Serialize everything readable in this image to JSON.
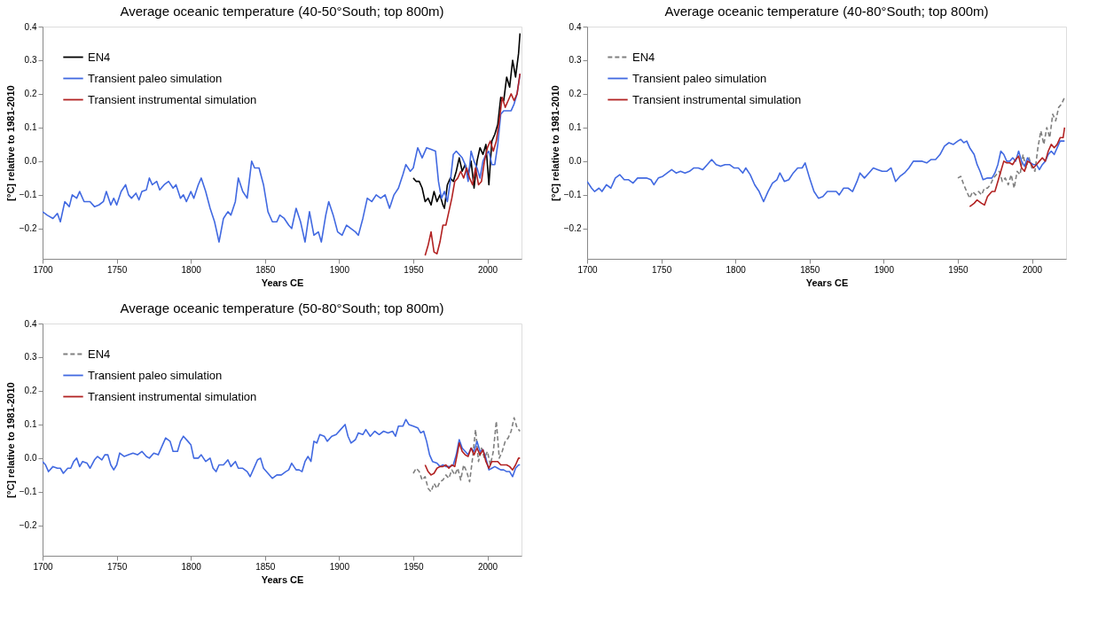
{
  "chart_data": [
    {
      "type": "line",
      "title": "Average oceanic temperature (40-50°South; top 800m)",
      "xlabel": "Years CE",
      "ylabel": "[°C] relative to 1981-2010",
      "xlim": [
        1700,
        2023
      ],
      "ylim": [
        -0.29,
        0.4
      ],
      "xticks": [
        1700,
        1750,
        1800,
        1850,
        1900,
        1950,
        2000
      ],
      "yticks": [
        {
          "value": -0.2,
          "label": "−0.2"
        },
        {
          "value": -0.1,
          "label": "−0.1"
        },
        {
          "value": 0,
          "label": "0.0"
        },
        0.1,
        0.2,
        0.3,
        0.4
      ],
      "legend": "top left",
      "series": [
        {
          "name": "EN4",
          "color": "#000000",
          "line_style": "solid",
          "x": [
            1950,
            1952,
            1954,
            1956,
            1958,
            1960,
            1962,
            1964,
            1966,
            1968,
            1970,
            1971,
            1973,
            1975,
            1977,
            1979,
            1981,
            1983,
            1985,
            1987,
            1989,
            1991,
            1993,
            1995,
            1997,
            1999,
            2001,
            2003,
            2005,
            2007,
            2009,
            2011,
            2013,
            2015,
            2017,
            2019,
            2021,
            2022
          ],
          "values": [
            -0.05,
            -0.06,
            -0.06,
            -0.08,
            -0.12,
            -0.11,
            -0.13,
            -0.09,
            -0.12,
            -0.1,
            -0.13,
            -0.14,
            -0.07,
            -0.05,
            -0.06,
            -0.03,
            0.01,
            -0.03,
            -0.01,
            -0.04,
            0.0,
            -0.08,
            0.0,
            0.04,
            0.02,
            0.05,
            -0.07,
            0.06,
            0.08,
            0.11,
            0.19,
            0.18,
            0.25,
            0.22,
            0.3,
            0.25,
            0.32,
            0.38
          ]
        },
        {
          "name": "Transient paleo simulation",
          "color": "#4169e1",
          "line_style": "solid",
          "x": [
            1700,
            1703,
            1707,
            1710,
            1712,
            1715,
            1718,
            1720,
            1723,
            1725,
            1728,
            1732,
            1735,
            1738,
            1741,
            1743,
            1746,
            1748,
            1750,
            1753,
            1756,
            1758,
            1760,
            1763,
            1765,
            1767,
            1770,
            1772,
            1774,
            1777,
            1779,
            1782,
            1785,
            1788,
            1790,
            1793,
            1795,
            1797,
            1800,
            1802,
            1805,
            1807,
            1810,
            1813,
            1816,
            1819,
            1822,
            1825,
            1827,
            1830,
            1832,
            1835,
            1838,
            1841,
            1843,
            1846,
            1849,
            1852,
            1855,
            1858,
            1860,
            1863,
            1866,
            1868,
            1871,
            1874,
            1877,
            1880,
            1883,
            1886,
            1888,
            1891,
            1893,
            1896,
            1899,
            1902,
            1905,
            1908,
            1911,
            1913,
            1916,
            1919,
            1922,
            1925,
            1928,
            1931,
            1934,
            1937,
            1940,
            1943,
            1945,
            1948,
            1950,
            1953,
            1956,
            1959,
            1962,
            1965,
            1967,
            1969,
            1971,
            1973,
            1975,
            1977,
            1979,
            1981,
            1983,
            1985,
            1987,
            1989,
            1991,
            1993,
            1995,
            1997,
            1999,
            2001,
            2003,
            2005,
            2007,
            2009,
            2011,
            2014,
            2016,
            2018,
            2020,
            2022
          ],
          "values": [
            -0.15,
            -0.16,
            -0.17,
            -0.155,
            -0.18,
            -0.12,
            -0.135,
            -0.1,
            -0.11,
            -0.09,
            -0.12,
            -0.12,
            -0.135,
            -0.13,
            -0.12,
            -0.09,
            -0.13,
            -0.11,
            -0.13,
            -0.09,
            -0.07,
            -0.1,
            -0.11,
            -0.095,
            -0.115,
            -0.09,
            -0.085,
            -0.05,
            -0.07,
            -0.06,
            -0.085,
            -0.07,
            -0.06,
            -0.08,
            -0.07,
            -0.11,
            -0.1,
            -0.12,
            -0.09,
            -0.11,
            -0.07,
            -0.05,
            -0.09,
            -0.14,
            -0.18,
            -0.24,
            -0.17,
            -0.15,
            -0.16,
            -0.12,
            -0.05,
            -0.09,
            -0.11,
            0.0,
            -0.02,
            -0.02,
            -0.07,
            -0.15,
            -0.18,
            -0.18,
            -0.16,
            -0.17,
            -0.19,
            -0.2,
            -0.14,
            -0.18,
            -0.24,
            -0.15,
            -0.22,
            -0.21,
            -0.24,
            -0.16,
            -0.12,
            -0.16,
            -0.21,
            -0.22,
            -0.19,
            -0.2,
            -0.21,
            -0.22,
            -0.17,
            -0.11,
            -0.12,
            -0.1,
            -0.11,
            -0.1,
            -0.14,
            -0.1,
            -0.08,
            -0.04,
            -0.01,
            -0.03,
            -0.02,
            0.04,
            0.01,
            0.04,
            0.035,
            0.03,
            -0.06,
            -0.11,
            -0.09,
            -0.12,
            -0.06,
            0.02,
            0.03,
            0.02,
            0.01,
            -0.01,
            -0.06,
            0.03,
            0.0,
            -0.02,
            -0.05,
            0.0,
            0.02,
            0.03,
            -0.01,
            -0.01,
            0.05,
            0.14,
            0.15,
            0.15,
            0.15,
            0.17,
            0.2,
            0.26
          ]
        },
        {
          "name": "Transient instrumental simulation",
          "color": "#b22222",
          "line_style": "solid",
          "x": [
            1958,
            1960,
            1962,
            1964,
            1966,
            1968,
            1970,
            1972,
            1974,
            1976,
            1978,
            1980,
            1982,
            1984,
            1986,
            1988,
            1990,
            1992,
            1994,
            1996,
            1998,
            2000,
            2002,
            2004,
            2006,
            2008,
            2010,
            2012,
            2014,
            2016,
            2018,
            2020,
            2022
          ],
          "values": [
            -0.28,
            -0.25,
            -0.21,
            -0.27,
            -0.275,
            -0.24,
            -0.19,
            -0.19,
            -0.15,
            -0.11,
            -0.06,
            -0.05,
            -0.03,
            -0.05,
            -0.02,
            -0.05,
            -0.07,
            -0.02,
            -0.07,
            -0.06,
            0.0,
            0.04,
            0.06,
            0.03,
            0.06,
            0.12,
            0.19,
            0.16,
            0.18,
            0.2,
            0.18,
            0.2,
            0.26
          ]
        }
      ]
    },
    {
      "type": "line",
      "title": "Average oceanic temperature (40-80°South; top 800m)",
      "xlabel": "Years CE",
      "ylabel": "[°C] relative to 1981-2010",
      "xlim": [
        1700,
        2023
      ],
      "ylim": [
        -0.29,
        0.4
      ],
      "xticks": [
        1700,
        1750,
        1800,
        1850,
        1900,
        1950,
        2000
      ],
      "yticks": [
        {
          "value": -0.2,
          "label": "−0.2"
        },
        {
          "value": -0.1,
          "label": "−0.1"
        },
        {
          "value": 0,
          "label": "0.0"
        },
        0.1,
        0.2,
        0.3,
        0.4
      ],
      "legend": "top left",
      "series": [
        {
          "name": "EN4",
          "color": "#808080",
          "line_style": "dashed",
          "x": [
            1950,
            1952,
            1954,
            1956,
            1958,
            1960,
            1962,
            1964,
            1966,
            1968,
            1970,
            1972,
            1974,
            1976,
            1978,
            1980,
            1982,
            1984,
            1986,
            1988,
            1990,
            1992,
            1994,
            1996,
            1998,
            2000,
            2002,
            2004,
            2006,
            2008,
            2010,
            2012,
            2014,
            2016,
            2018,
            2020,
            2022
          ],
          "values": [
            -0.05,
            -0.045,
            -0.07,
            -0.09,
            -0.11,
            -0.09,
            -0.1,
            -0.09,
            -0.1,
            -0.08,
            -0.08,
            -0.07,
            -0.05,
            -0.04,
            -0.03,
            -0.06,
            -0.05,
            -0.07,
            -0.04,
            -0.08,
            -0.03,
            -0.04,
            0.02,
            -0.02,
            0.01,
            -0.02,
            -0.03,
            0.04,
            0.09,
            0.05,
            0.1,
            0.07,
            0.14,
            0.12,
            0.16,
            0.17,
            0.19
          ]
        },
        {
          "name": "Transient paleo simulation",
          "color": "#4169e1",
          "line_style": "solid",
          "x": [
            1700,
            1703,
            1705,
            1708,
            1710,
            1713,
            1716,
            1719,
            1722,
            1725,
            1728,
            1731,
            1734,
            1737,
            1740,
            1743,
            1745,
            1748,
            1751,
            1754,
            1757,
            1760,
            1763,
            1766,
            1769,
            1772,
            1775,
            1778,
            1781,
            1784,
            1787,
            1790,
            1793,
            1796,
            1799,
            1802,
            1805,
            1807,
            1810,
            1813,
            1816,
            1819,
            1822,
            1825,
            1828,
            1830,
            1833,
            1836,
            1839,
            1842,
            1845,
            1847,
            1850,
            1853,
            1856,
            1859,
            1862,
            1865,
            1868,
            1870,
            1873,
            1876,
            1879,
            1882,
            1884,
            1887,
            1890,
            1893,
            1896,
            1899,
            1902,
            1905,
            1908,
            1911,
            1914,
            1917,
            1920,
            1923,
            1926,
            1929,
            1932,
            1935,
            1938,
            1941,
            1944,
            1947,
            1950,
            1952,
            1954,
            1956,
            1958,
            1961,
            1963,
            1965,
            1967,
            1970,
            1973,
            1975,
            1977,
            1979,
            1981,
            1983,
            1985,
            1987,
            1989,
            1991,
            1993,
            1995,
            1997,
            1999,
            2001,
            2003,
            2005,
            2007,
            2009,
            2011,
            2013,
            2015,
            2017,
            2019,
            2022
          ],
          "values": [
            -0.06,
            -0.08,
            -0.09,
            -0.08,
            -0.09,
            -0.07,
            -0.08,
            -0.05,
            -0.04,
            -0.055,
            -0.055,
            -0.065,
            -0.05,
            -0.05,
            -0.05,
            -0.055,
            -0.07,
            -0.05,
            -0.045,
            -0.035,
            -0.025,
            -0.035,
            -0.03,
            -0.035,
            -0.03,
            -0.02,
            -0.02,
            -0.025,
            -0.01,
            0.005,
            -0.01,
            -0.015,
            -0.01,
            -0.01,
            -0.02,
            -0.02,
            -0.035,
            -0.02,
            -0.04,
            -0.07,
            -0.09,
            -0.12,
            -0.09,
            -0.065,
            -0.055,
            -0.035,
            -0.06,
            -0.055,
            -0.035,
            -0.02,
            -0.02,
            -0.005,
            -0.05,
            -0.09,
            -0.11,
            -0.105,
            -0.09,
            -0.09,
            -0.09,
            -0.1,
            -0.08,
            -0.08,
            -0.09,
            -0.06,
            -0.035,
            -0.05,
            -0.035,
            -0.02,
            -0.025,
            -0.03,
            -0.03,
            -0.02,
            -0.06,
            -0.045,
            -0.035,
            -0.02,
            0.0,
            0.0,
            0.0,
            -0.005,
            0.005,
            0.005,
            0.02,
            0.045,
            0.055,
            0.05,
            0.06,
            0.065,
            0.055,
            0.06,
            0.04,
            0.02,
            -0.01,
            -0.03,
            -0.055,
            -0.05,
            -0.05,
            -0.035,
            -0.01,
            0.03,
            0.02,
            0.0,
            0.0,
            0.01,
            0.0,
            0.03,
            0.0,
            -0.015,
            0.01,
            -0.005,
            -0.01,
            -0.01,
            -0.025,
            -0.01,
            0.0,
            0.02,
            0.03,
            0.02,
            0.04,
            0.06,
            0.06
          ]
        },
        {
          "name": "Transient instrumental simulation",
          "color": "#b22222",
          "line_style": "solid",
          "x": [
            1958,
            1961,
            1963,
            1966,
            1968,
            1970,
            1973,
            1975,
            1977,
            1979,
            1981,
            1983,
            1985,
            1987,
            1989,
            1991,
            1993,
            1995,
            1997,
            1999,
            2001,
            2003,
            2005,
            2007,
            2009,
            2011,
            2013,
            2015,
            2017,
            2019,
            2021,
            2022
          ],
          "values": [
            -0.135,
            -0.125,
            -0.115,
            -0.125,
            -0.13,
            -0.105,
            -0.09,
            -0.09,
            -0.06,
            -0.03,
            0.0,
            -0.005,
            -0.005,
            -0.01,
            0.005,
            0.015,
            -0.02,
            -0.03,
            0.0,
            -0.005,
            -0.02,
            -0.01,
            0.0,
            0.01,
            0.0,
            0.03,
            0.05,
            0.04,
            0.05,
            0.07,
            0.07,
            0.1
          ]
        }
      ]
    },
    {
      "type": "line",
      "title": "Average oceanic temperature (50-80°South; top 800m)",
      "xlabel": "Years CE",
      "ylabel": "[°C] relative to 1981-2010",
      "xlim": [
        1700,
        2023
      ],
      "ylim": [
        -0.29,
        0.4
      ],
      "xticks": [
        1700,
        1750,
        1800,
        1850,
        1900,
        1950,
        2000
      ],
      "yticks": [
        {
          "value": -0.2,
          "label": "−0.2"
        },
        {
          "value": -0.1,
          "label": "−0.1"
        },
        {
          "value": 0,
          "label": "0.0"
        },
        0.1,
        0.2,
        0.3,
        0.4
      ],
      "legend": "top left",
      "series": [
        {
          "name": "EN4",
          "color": "#808080",
          "line_style": "dashed",
          "x": [
            1950,
            1952,
            1954,
            1956,
            1958,
            1960,
            1962,
            1964,
            1966,
            1968,
            1970,
            1972,
            1974,
            1976,
            1978,
            1980,
            1982,
            1984,
            1986,
            1988,
            1990,
            1992,
            1994,
            1996,
            1998,
            2000,
            2002,
            2004,
            2006,
            2008,
            2010,
            2012,
            2014,
            2016,
            2018,
            2020,
            2022
          ],
          "values": [
            -0.045,
            -0.03,
            -0.04,
            -0.065,
            -0.055,
            -0.09,
            -0.1,
            -0.075,
            -0.09,
            -0.07,
            -0.065,
            -0.05,
            -0.06,
            -0.035,
            -0.05,
            -0.03,
            -0.065,
            -0.02,
            -0.04,
            -0.07,
            0.0,
            0.085,
            -0.01,
            0.03,
            0.0,
            0.02,
            -0.02,
            0.02,
            0.11,
            0.0,
            0.02,
            0.05,
            0.06,
            0.08,
            0.12,
            0.09,
            0.08
          ]
        },
        {
          "name": "Transient paleo simulation",
          "color": "#4169e1",
          "line_style": "solid",
          "x": [
            1700,
            1702,
            1704,
            1707,
            1710,
            1712,
            1714,
            1717,
            1719,
            1721,
            1723,
            1725,
            1727,
            1730,
            1732,
            1735,
            1737,
            1740,
            1742,
            1744,
            1746,
            1748,
            1750,
            1752,
            1755,
            1758,
            1761,
            1764,
            1767,
            1770,
            1772,
            1775,
            1778,
            1781,
            1783,
            1786,
            1788,
            1791,
            1793,
            1795,
            1798,
            1800,
            1802,
            1805,
            1807,
            1810,
            1813,
            1815,
            1817,
            1819,
            1822,
            1825,
            1827,
            1830,
            1832,
            1835,
            1838,
            1840,
            1843,
            1845,
            1847,
            1849,
            1852,
            1855,
            1858,
            1861,
            1864,
            1866,
            1868,
            1871,
            1873,
            1875,
            1877,
            1879,
            1881,
            1883,
            1885,
            1887,
            1890,
            1892,
            1895,
            1898,
            1901,
            1904,
            1906,
            1908,
            1911,
            1913,
            1916,
            1918,
            1921,
            1924,
            1927,
            1930,
            1933,
            1936,
            1938,
            1940,
            1943,
            1945,
            1947,
            1950,
            1953,
            1955,
            1957,
            1959,
            1961,
            1963,
            1966,
            1968,
            1970,
            1972,
            1975,
            1977,
            1979,
            1981,
            1983,
            1985,
            1987,
            1989,
            1991,
            1993,
            1995,
            1997,
            1999,
            2001,
            2003,
            2005,
            2007,
            2009,
            2011,
            2013,
            2015,
            2017,
            2019,
            2021,
            2022
          ],
          "values": [
            -0.01,
            -0.02,
            -0.04,
            -0.025,
            -0.03,
            -0.03,
            -0.045,
            -0.03,
            -0.03,
            -0.01,
            0.0,
            -0.025,
            -0.01,
            -0.015,
            -0.03,
            -0.005,
            0.005,
            -0.005,
            0.01,
            0.01,
            -0.02,
            -0.035,
            -0.02,
            0.015,
            0.005,
            0.01,
            0.015,
            0.01,
            0.02,
            0.005,
            0.0,
            0.015,
            0.01,
            0.04,
            0.06,
            0.05,
            0.02,
            0.02,
            0.05,
            0.065,
            0.05,
            0.04,
            0.0,
            0.0,
            0.01,
            -0.01,
            0.0,
            -0.03,
            -0.04,
            -0.02,
            -0.02,
            -0.005,
            -0.025,
            -0.01,
            -0.03,
            -0.03,
            -0.04,
            -0.055,
            -0.025,
            -0.005,
            0.0,
            -0.03,
            -0.045,
            -0.06,
            -0.05,
            -0.05,
            -0.04,
            -0.035,
            -0.015,
            -0.035,
            -0.035,
            -0.04,
            -0.01,
            0.005,
            -0.01,
            0.05,
            0.045,
            0.07,
            0.065,
            0.05,
            0.065,
            0.07,
            0.085,
            0.1,
            0.065,
            0.045,
            0.055,
            0.075,
            0.07,
            0.085,
            0.065,
            0.08,
            0.07,
            0.08,
            0.075,
            0.08,
            0.065,
            0.095,
            0.095,
            0.115,
            0.1,
            0.095,
            0.09,
            0.075,
            0.08,
            0.05,
            0.01,
            -0.01,
            -0.015,
            -0.025,
            -0.02,
            -0.025,
            -0.025,
            -0.02,
            0.01,
            0.055,
            0.03,
            0.02,
            0.01,
            0.03,
            0.02,
            0.05,
            0.02,
            0.025,
            0.0,
            -0.035,
            -0.03,
            -0.025,
            -0.03,
            -0.035,
            -0.035,
            -0.04,
            -0.04,
            -0.055,
            -0.03,
            -0.02,
            -0.02
          ]
        },
        {
          "name": "Transient instrumental simulation",
          "color": "#b22222",
          "line_style": "solid",
          "x": [
            1958,
            1960,
            1962,
            1964,
            1966,
            1968,
            1970,
            1972,
            1974,
            1976,
            1978,
            1980,
            1981,
            1983,
            1985,
            1987,
            1989,
            1991,
            1993,
            1995,
            1997,
            1999,
            2001,
            2003,
            2005,
            2007,
            2009,
            2011,
            2013,
            2015,
            2017,
            2019,
            2021,
            2022
          ],
          "values": [
            -0.02,
            -0.04,
            -0.05,
            -0.045,
            -0.03,
            -0.025,
            -0.025,
            -0.02,
            -0.03,
            -0.02,
            -0.025,
            0.02,
            0.045,
            0.02,
            0.01,
            0.005,
            0.03,
            0.01,
            0.03,
            0.01,
            0.025,
            -0.01,
            -0.03,
            -0.01,
            -0.01,
            -0.01,
            -0.02,
            -0.02,
            -0.02,
            -0.025,
            -0.035,
            -0.02,
            0.0,
            0.0
          ]
        }
      ]
    }
  ]
}
